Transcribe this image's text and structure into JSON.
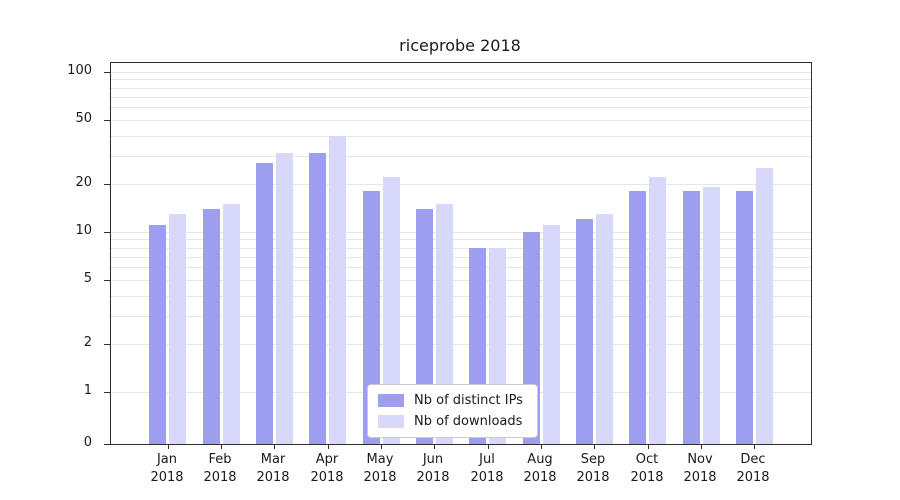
{
  "title": "riceprobe 2018",
  "colors": {
    "distinct_ips": "#9e9ef0",
    "downloads": "#d8d8fa",
    "gridline": "#e6e6e6",
    "axis": "#2e2e2e"
  },
  "chart_data": {
    "type": "bar",
    "title": "riceprobe 2018",
    "categories": [
      "Jan",
      "Feb",
      "Mar",
      "Apr",
      "May",
      "Jun",
      "Jul",
      "Aug",
      "Sep",
      "Oct",
      "Nov",
      "Dec"
    ],
    "year": "2018",
    "series": [
      {
        "name": "Nb of distinct IPs",
        "color": "#9e9ef0",
        "values": [
          11,
          14,
          27,
          31,
          18,
          14,
          8,
          10,
          12,
          18,
          18,
          18
        ]
      },
      {
        "name": "Nb of downloads",
        "color": "#d8d8fa",
        "values": [
          13,
          15,
          31,
          40,
          22,
          15,
          8,
          11,
          13,
          22,
          19,
          25
        ]
      }
    ],
    "yscale": "symlog",
    "ylim": [
      0,
      100
    ],
    "y_ticks": [
      0,
      1,
      2,
      5,
      10,
      20,
      50,
      100
    ],
    "gridlines": [
      1,
      2,
      3,
      4,
      5,
      6,
      7,
      8,
      9,
      10,
      20,
      30,
      40,
      50,
      60,
      70,
      80,
      90,
      100
    ],
    "grid": "on",
    "legend_position": "lower center",
    "xlabel": "",
    "ylabel": ""
  }
}
